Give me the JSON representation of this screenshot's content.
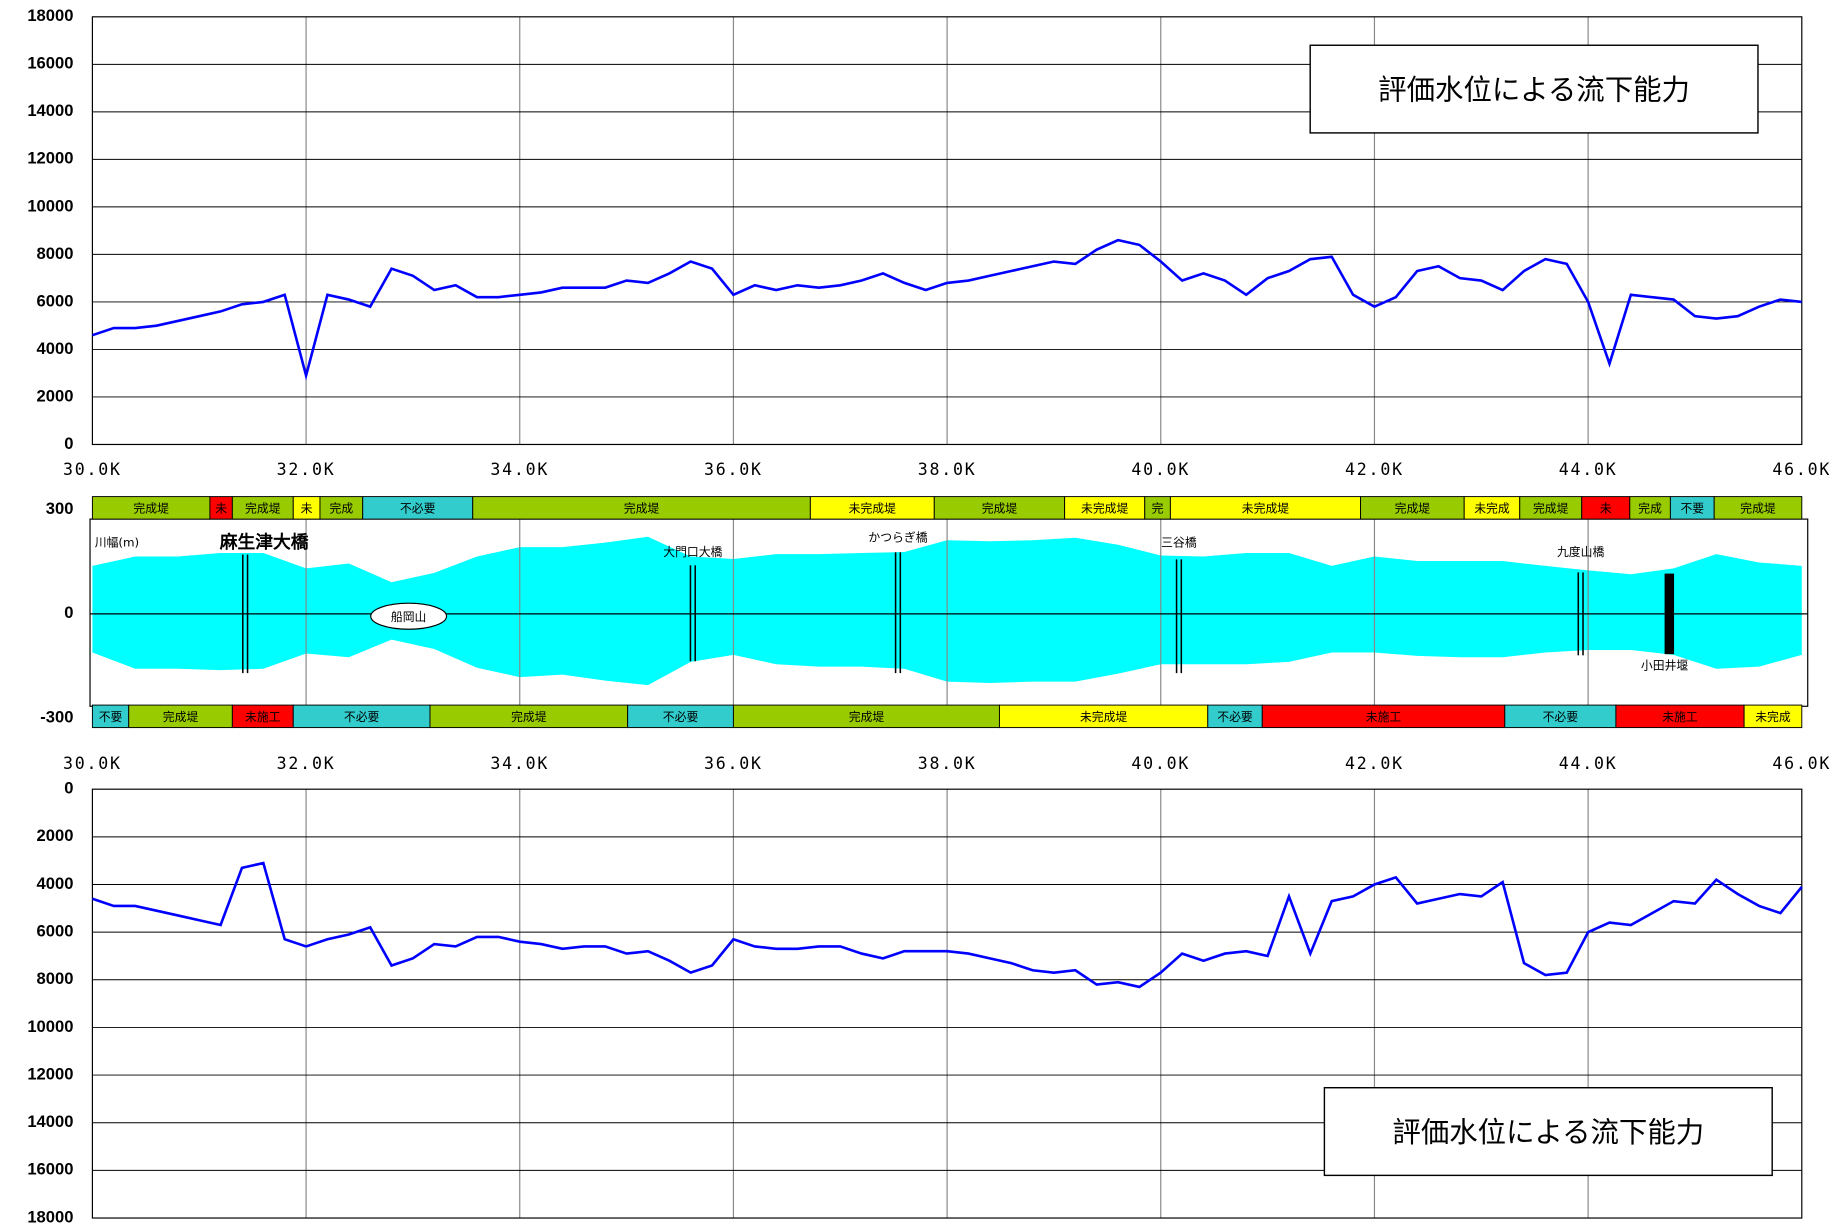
{
  "chart_data": [
    {
      "type": "line",
      "annotation": "評価水位による流下能力",
      "x": [
        30.0,
        30.2,
        30.4,
        30.6,
        30.8,
        31.0,
        31.2,
        31.4,
        31.6,
        31.8,
        32.0,
        32.2,
        32.4,
        32.6,
        32.8,
        33.0,
        33.2,
        33.4,
        33.6,
        33.8,
        34.0,
        34.2,
        34.4,
        34.6,
        34.8,
        35.0,
        35.2,
        35.4,
        35.6,
        35.8,
        36.0,
        36.2,
        36.4,
        36.6,
        36.8,
        37.0,
        37.2,
        37.4,
        37.6,
        37.8,
        38.0,
        38.2,
        38.4,
        38.6,
        38.8,
        39.0,
        39.2,
        39.4,
        39.6,
        39.8,
        40.0,
        40.2,
        40.4,
        40.6,
        40.8,
        41.0,
        41.2,
        41.4,
        41.6,
        41.8,
        42.0,
        42.2,
        42.4,
        42.6,
        42.8,
        43.0,
        43.2,
        43.4,
        43.6,
        43.8,
        44.0,
        44.2,
        44.4,
        44.6,
        44.8,
        45.0,
        45.2,
        45.4,
        45.6,
        45.8,
        46.0
      ],
      "series": [
        {
          "color": "#0000ff",
          "values": [
            4600,
            4900,
            4900,
            5000,
            5200,
            5400,
            5600,
            5900,
            6000,
            6300,
            2900,
            6300,
            6100,
            5800,
            7400,
            7100,
            6500,
            6700,
            6200,
            6200,
            6300,
            6400,
            6600,
            6600,
            6600,
            6900,
            6800,
            7200,
            7700,
            7400,
            6300,
            6700,
            6500,
            6700,
            6600,
            6700,
            6900,
            7200,
            6800,
            6500,
            6800,
            6900,
            7100,
            7300,
            7500,
            7700,
            7600,
            8200,
            8600,
            8400,
            7700,
            6900,
            7200,
            6900,
            6300,
            7000,
            7300,
            7800,
            7900,
            6300,
            5800,
            6200,
            7300,
            7500,
            7000,
            6900,
            6500,
            7300,
            7800,
            7600,
            6000,
            3400,
            6300,
            6200,
            6100,
            5400,
            5300,
            5400,
            5800,
            6100,
            6000
          ]
        }
      ],
      "xlim": [
        30,
        46
      ],
      "xticks": [
        {
          "value": 30,
          "label": "30.0K"
        },
        {
          "value": 32,
          "label": "32.0K"
        },
        {
          "value": 34,
          "label": "34.0K"
        },
        {
          "value": 36,
          "label": "36.0K"
        },
        {
          "value": 38,
          "label": "38.0K"
        },
        {
          "value": 40,
          "label": "40.0K"
        },
        {
          "value": 42,
          "label": "42.0K"
        },
        {
          "value": 44,
          "label": "44.0K"
        },
        {
          "value": 46,
          "label": "46.0K"
        }
      ],
      "ylim": [
        0,
        18000
      ],
      "yticks": [
        0,
        2000,
        4000,
        6000,
        8000,
        10000,
        12000,
        14000,
        16000,
        18000
      ],
      "grid": true
    },
    {
      "type": "river",
      "axis_label": "川幅(m)",
      "color": "#00ffff",
      "x": [
        30.0,
        30.4,
        30.8,
        31.2,
        31.6,
        32.0,
        32.4,
        32.8,
        33.2,
        33.6,
        34.0,
        34.4,
        34.8,
        35.2,
        35.6,
        36.0,
        36.4,
        36.8,
        37.2,
        37.6,
        38.0,
        38.4,
        38.8,
        39.2,
        39.6,
        40.0,
        40.4,
        40.8,
        41.2,
        41.6,
        42.0,
        42.4,
        42.8,
        43.2,
        43.6,
        44.0,
        44.4,
        44.8,
        45.2,
        45.6,
        46.0
      ],
      "upper": [
        138,
        165,
        165,
        175,
        175,
        131,
        145,
        91,
        118,
        165,
        192,
        192,
        205,
        222,
        165,
        158,
        172,
        172,
        175,
        178,
        212,
        209,
        212,
        219,
        199,
        168,
        165,
        175,
        175,
        138,
        165,
        152,
        152,
        152,
        138,
        125,
        114,
        131,
        172,
        148,
        138
      ],
      "lower": [
        -111,
        -158,
        -158,
        -162,
        -158,
        -114,
        -125,
        -74,
        -101,
        -155,
        -182,
        -175,
        -192,
        -205,
        -138,
        -118,
        -145,
        -152,
        -152,
        -158,
        -195,
        -199,
        -195,
        -195,
        -172,
        -145,
        -145,
        -145,
        -138,
        -111,
        -111,
        -121,
        -125,
        -125,
        -111,
        -104,
        -104,
        -118,
        -158,
        -152,
        -118
      ],
      "xlim": [
        30,
        46
      ],
      "xticks": [
        {
          "value": 30,
          "label": "30.0K"
        },
        {
          "value": 32,
          "label": "32.0K"
        },
        {
          "value": 34,
          "label": "34.0K"
        },
        {
          "value": 36,
          "label": "36.0K"
        },
        {
          "value": 38,
          "label": "38.0K"
        },
        {
          "value": 40,
          "label": "40.0K"
        },
        {
          "value": 42,
          "label": "42.0K"
        },
        {
          "value": 44,
          "label": "44.0K"
        },
        {
          "value": 46,
          "label": "46.0K"
        }
      ],
      "ylim": [
        -300,
        300
      ],
      "yticks": [
        -300,
        0,
        300
      ],
      "bridges": [
        {
          "name": "麻生津大橋",
          "x": 31.43
        },
        {
          "name": "大門口大橋",
          "x": 35.62
        },
        {
          "name": "かつらぎ橋",
          "x": 37.54
        },
        {
          "name": "三谷橋",
          "x": 40.17
        },
        {
          "name": "九度山橋",
          "x": 43.93
        }
      ],
      "weir": {
        "name": "小田井堰",
        "x": 44.76
      },
      "landmark": {
        "name": "船岡山",
        "x": 32.96
      },
      "levee_left": {
        "breaks": [
          30,
          31.1,
          31.31,
          31.88,
          32.13,
          32.53,
          33.56,
          36.72,
          37.88,
          39.1,
          39.85,
          40.09,
          41.87,
          42.84,
          43.36,
          43.94,
          44.39,
          44.77,
          45.18,
          46
        ],
        "labels": [
          "完成堤",
          "未",
          "完成堤",
          "未",
          "完成",
          "不必要",
          "完成堤",
          "未完成堤",
          "完成堤",
          "未完成堤",
          "完",
          "未完成堤",
          "完成堤",
          "未完成",
          "完成堤",
          "未",
          "完成",
          "不要",
          "完成堤"
        ],
        "colors": [
          "#99cc00",
          "#ff0000",
          "#99cc00",
          "#ffff00",
          "#99cc00",
          "#33cccc",
          "#99cc00",
          "#ffff00",
          "#99cc00",
          "#ffff00",
          "#99cc00",
          "#ffff00",
          "#99cc00",
          "#ffff00",
          "#99cc00",
          "#ff0000",
          "#99cc00",
          "#33cccc",
          "#99cc00"
        ]
      },
      "levee_right": {
        "breaks": [
          30,
          30.34,
          31.31,
          31.88,
          33.16,
          35.01,
          36.0,
          38.49,
          40.44,
          40.95,
          43.22,
          44.26,
          45.46,
          46
        ],
        "labels": [
          "不要",
          "完成堤",
          "未施工",
          "不必要",
          "完成堤",
          "不必要",
          "完成堤",
          "未完成堤",
          "不必要",
          "未施工",
          "不必要",
          "未施工",
          "未完成"
        ],
        "colors": [
          "#33cccc",
          "#99cc00",
          "#ff0000",
          "#33cccc",
          "#99cc00",
          "#33cccc",
          "#99cc00",
          "#ffff00",
          "#33cccc",
          "#ff0000",
          "#33cccc",
          "#ff0000",
          "#ffff00"
        ]
      }
    },
    {
      "type": "line",
      "inverted": true,
      "annotation": "評価水位による流下能力",
      "x": [
        30.0,
        30.2,
        30.4,
        30.6,
        30.8,
        31.0,
        31.2,
        31.4,
        31.6,
        31.8,
        32.0,
        32.2,
        32.4,
        32.6,
        32.8,
        33.0,
        33.2,
        33.4,
        33.6,
        33.8,
        34.0,
        34.2,
        34.4,
        34.6,
        34.8,
        35.0,
        35.2,
        35.4,
        35.6,
        35.8,
        36.0,
        36.2,
        36.4,
        36.6,
        36.8,
        37.0,
        37.2,
        37.4,
        37.6,
        37.8,
        38.0,
        38.2,
        38.4,
        38.6,
        38.8,
        39.0,
        39.2,
        39.4,
        39.6,
        39.8,
        40.0,
        40.2,
        40.4,
        40.6,
        40.8,
        41.0,
        41.2,
        41.4,
        41.6,
        41.8,
        42.0,
        42.2,
        42.4,
        42.6,
        42.8,
        43.0,
        43.2,
        43.4,
        43.6,
        43.8,
        44.0,
        44.2,
        44.4,
        44.6,
        44.8,
        45.0,
        45.2,
        45.4,
        45.6,
        45.8,
        46.0
      ],
      "series": [
        {
          "color": "#0000ff",
          "values": [
            4600,
            4900,
            4900,
            5100,
            5300,
            5500,
            5700,
            3300,
            3100,
            6300,
            6600,
            6300,
            6100,
            5800,
            7400,
            7100,
            6500,
            6600,
            6200,
            6200,
            6400,
            6500,
            6700,
            6600,
            6600,
            6900,
            6800,
            7200,
            7700,
            7400,
            6300,
            6600,
            6700,
            6700,
            6600,
            6600,
            6900,
            7100,
            6800,
            6800,
            6800,
            6900,
            7100,
            7300,
            7600,
            7700,
            7600,
            8200,
            8100,
            8300,
            7700,
            6900,
            7200,
            6900,
            6800,
            7000,
            4500,
            6900,
            4700,
            4500,
            4000,
            3700,
            4800,
            4600,
            4400,
            4500,
            3900,
            7300,
            7800,
            7700,
            6000,
            5600,
            5700,
            5200,
            4700,
            4800,
            3800,
            4400,
            4900,
            5200,
            4100
          ]
        }
      ],
      "xlim": [
        30,
        46
      ],
      "xticks": [
        30,
        32,
        34,
        36,
        38,
        40,
        42,
        44,
        46
      ],
      "ylim": [
        0,
        18000
      ],
      "yticks": [
        0,
        2000,
        4000,
        6000,
        8000,
        10000,
        12000,
        14000,
        16000,
        18000
      ],
      "grid": true
    }
  ]
}
